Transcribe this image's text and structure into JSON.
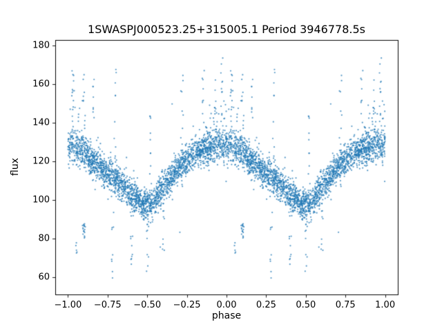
{
  "chart_data": {
    "type": "scatter",
    "title": "1SWASPJ000523.25+315005.1 Period 3946778.5s",
    "xlabel": "phase",
    "ylabel": "flux",
    "xlim": [
      -1.08,
      1.08
    ],
    "ylim": [
      51,
      183
    ],
    "xticks": [
      -1.0,
      -0.75,
      -0.5,
      -0.25,
      0.0,
      0.25,
      0.5,
      0.75,
      1.0
    ],
    "xtick_labels": [
      "−1.00",
      "−0.75",
      "−0.50",
      "−0.25",
      "0.00",
      "0.25",
      "0.50",
      "0.75",
      "1.00"
    ],
    "yticks": [
      60,
      80,
      100,
      120,
      140,
      160,
      180
    ],
    "ytick_labels": [
      "60",
      "80",
      "100",
      "120",
      "140",
      "160",
      "180"
    ],
    "grid": false,
    "legend": "none",
    "marker_color": "#1f77b4",
    "marker_alpha": 0.75,
    "marker_radius": 1.1,
    "axis_color": "#000000",
    "background_color": "#ffffff",
    "phase_plot_range": [
      -1.0,
      1.0
    ],
    "seed": 987654,
    "n_base": 2400,
    "noise_sigma": 4.2,
    "peak_tail": {
      "prob": 0.1,
      "scale": 12,
      "low_cut": 0.12,
      "high_cut": 0.88
    },
    "outlier": {
      "prob": 0.006,
      "range": 35
    },
    "mean_curve": {
      "phases": [
        0.0,
        0.05,
        0.1,
        0.15,
        0.2,
        0.25,
        0.3,
        0.35,
        0.4,
        0.45,
        0.5,
        0.55,
        0.6,
        0.65,
        0.7,
        0.75,
        0.8,
        0.85,
        0.9,
        0.95,
        1.0
      ],
      "flux": [
        128,
        127,
        125,
        121,
        117,
        114,
        111,
        107,
        103,
        99,
        98,
        100,
        106,
        112,
        117,
        121,
        124,
        126,
        127,
        128,
        128
      ]
    },
    "streaks": [
      {
        "phase": 0.03,
        "ymin": 135,
        "ymax": 177,
        "n": 14
      },
      {
        "phase": 0.05,
        "ymin": 70,
        "ymax": 90,
        "n": 5
      },
      {
        "phase": 0.1,
        "ymin": 80,
        "ymax": 88,
        "n": 18
      },
      {
        "phase": 0.1,
        "ymin": 130,
        "ymax": 175,
        "n": 10
      },
      {
        "phase": 0.16,
        "ymin": 135,
        "ymax": 164,
        "n": 8
      },
      {
        "phase": 0.28,
        "ymin": 57,
        "ymax": 100,
        "n": 9
      },
      {
        "phase": 0.3,
        "ymin": 120,
        "ymax": 172,
        "n": 10
      },
      {
        "phase": 0.4,
        "ymin": 66,
        "ymax": 95,
        "n": 8
      },
      {
        "phase": 0.5,
        "ymin": 63,
        "ymax": 90,
        "n": 9
      },
      {
        "phase": 0.52,
        "ymin": 110,
        "ymax": 147,
        "n": 8
      },
      {
        "phase": 0.6,
        "ymin": 73,
        "ymax": 95,
        "n": 7
      },
      {
        "phase": 0.72,
        "ymin": 125,
        "ymax": 170,
        "n": 10
      },
      {
        "phase": 0.85,
        "ymin": 130,
        "ymax": 170,
        "n": 10
      },
      {
        "phase": 0.93,
        "ymin": 132,
        "ymax": 163,
        "n": 9
      },
      {
        "phase": 0.97,
        "ymin": 135,
        "ymax": 174,
        "n": 10
      }
    ]
  }
}
